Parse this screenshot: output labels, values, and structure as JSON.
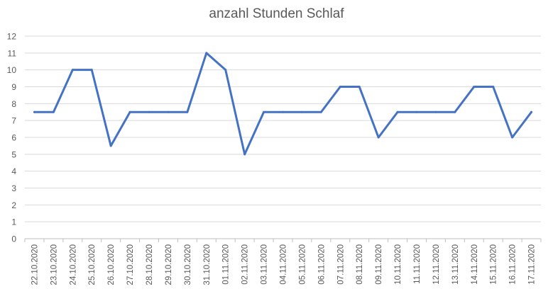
{
  "chart_data": {
    "type": "line",
    "title": "anzahl Stunden Schlaf",
    "xlabel": "",
    "ylabel": "",
    "ylim": [
      0,
      12
    ],
    "yticks": [
      0,
      1,
      2,
      3,
      4,
      5,
      6,
      7,
      8,
      9,
      10,
      11,
      12
    ],
    "grid": true,
    "legend": "none",
    "categories": [
      "22.10.2020",
      "23.10.2020",
      "24.10.2020",
      "25.10.2020",
      "26.10.2020",
      "27.10.2020",
      "28.10.2020",
      "29.10.2020",
      "30.10.2020",
      "31.10.2020",
      "01.11.2020",
      "02.11.2020",
      "03.11.2020",
      "04.11.2020",
      "05.11.2020",
      "06.11.2020",
      "07.11.2020",
      "08.11.2020",
      "09.11.2020",
      "10.11.2020",
      "11.11.2020",
      "12.11.2020",
      "13.11.2020",
      "14.11.2020",
      "15.11.2020",
      "16.11.2020",
      "17.11.2020"
    ],
    "series": [
      {
        "color": "#4472C4",
        "values": [
          7.5,
          7.5,
          10,
          10,
          5.5,
          7.5,
          7.5,
          7.5,
          7.5,
          11,
          10,
          5,
          7.5,
          7.5,
          7.5,
          7.5,
          9,
          9,
          6,
          7.5,
          7.5,
          7.5,
          7.5,
          9,
          9,
          6,
          7.5
        ]
      }
    ],
    "gridColor": "#D9D9D9",
    "axisColor": "#BFBFBF"
  }
}
